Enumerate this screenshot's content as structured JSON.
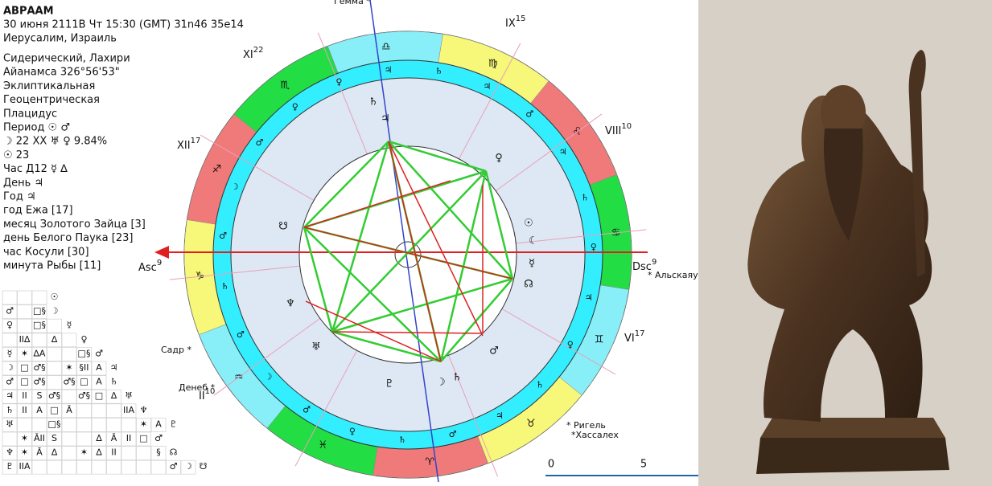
{
  "header": {
    "name": "АВРААМ",
    "datetime": "30 июня 2111В Чт  15:30 (GMT) 31n46  35e14",
    "place": "Иерусалим, Израиль"
  },
  "settings": [
    "Сидерический, Лахири",
    "Айанамса 326°56'53\"",
    "Эклиптикальная",
    "Геоцентрическая",
    "Плацидус",
    "Период ☉ ♂",
    "☽  22 XX ♅ ♀ 9.84%",
    "☉  23",
    "Час Д12 ☿ ∆",
    "День ♃",
    "Год ♃",
    "год Ежа [17]",
    "месяц Золотого Зайца [3]",
    "день Белого Паука [23]",
    "час Косули [30]",
    "минута Рыбы [11]"
  ],
  "chart": {
    "signs": [
      "♑",
      "♐",
      "♏",
      "♎",
      "♍",
      "♌",
      "♋",
      "♊",
      "♉",
      "♈",
      "♓",
      "♒"
    ],
    "houses": [
      {
        "label": "Asc",
        "sup": "9"
      },
      {
        "label": "XII",
        "sup": "17"
      },
      {
        "label": "XI",
        "sup": "22"
      },
      {
        "label": "IX",
        "sup": "15"
      },
      {
        "label": "VIII",
        "sup": "10"
      },
      {
        "label": "Dsc",
        "sup": "9"
      },
      {
        "label": "VI",
        "sup": "17"
      },
      {
        "label": "II",
        "sup": "10"
      }
    ],
    "planets": [
      "☉",
      "☾",
      "☿",
      "☊",
      "♂",
      "♄",
      "☽",
      "♇",
      "♅",
      "♆",
      "☋",
      "♀",
      "♃",
      "♄"
    ],
    "ring_glyphs": [
      "♄",
      "♂",
      "☽",
      "♂",
      "♀",
      "♀",
      "♃",
      "♄",
      "♃",
      "♂",
      "♃",
      "♄",
      "♀",
      "♃",
      "♀",
      "♄",
      "♃",
      "♂",
      "♄",
      "♀",
      "♂",
      "☽",
      "♂"
    ],
    "stars": [
      "Гемма *",
      "Садр *",
      "Денеб *",
      "* Ригель",
      "*Хассалех",
      "* Альскаяука"
    ],
    "scale": [
      0,
      5
    ]
  },
  "aspect_grid": {
    "rows": [
      [
        null,
        null,
        null,
        "☉"
      ],
      [
        "♂",
        null,
        "□§",
        "☽"
      ],
      [
        "♀",
        null,
        "□§",
        null,
        "☿"
      ],
      [
        null,
        "II∆",
        null,
        "∆",
        null,
        "♀"
      ],
      [
        "☿",
        "✶",
        "∆A",
        null,
        null,
        "□§",
        "♂"
      ],
      [
        "☽",
        "□",
        "♂§",
        null,
        "✶",
        "§II",
        "A",
        "♃"
      ],
      [
        "♂",
        "□",
        "♂§",
        null,
        "♂§",
        "□",
        "A",
        "♄"
      ],
      [
        "♃",
        "II",
        "S",
        "♂§",
        null,
        "♂§",
        "□",
        "∆",
        "♅"
      ],
      [
        "♄",
        "II",
        "A",
        "□",
        "Ā",
        null,
        null,
        null,
        "IIA",
        "♆"
      ],
      [
        "♅",
        null,
        null,
        "□§",
        null,
        null,
        null,
        null,
        null,
        "✶",
        "A",
        "♇"
      ],
      [
        null,
        "✶",
        "ĀII",
        "S",
        null,
        null,
        "∆",
        "Ā",
        "II",
        "□",
        "♂"
      ],
      [
        "♆",
        "✶",
        "Ā",
        "∆",
        null,
        "✶",
        "∆",
        "II",
        null,
        null,
        "§",
        "☊"
      ],
      [
        "♇",
        "IIA",
        null,
        null,
        null,
        null,
        null,
        null,
        null,
        null,
        null,
        "♂",
        "☽",
        "☋"
      ]
    ]
  }
}
